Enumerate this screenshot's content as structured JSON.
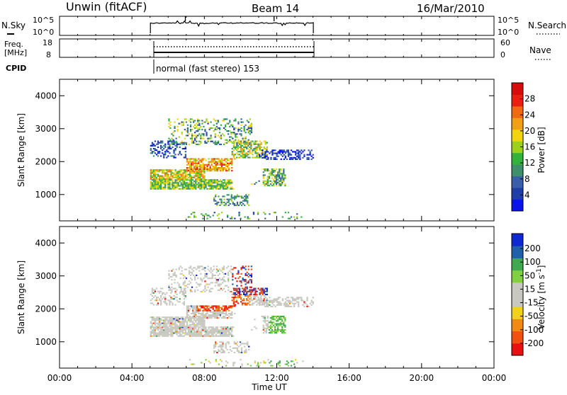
{
  "header": {
    "title": "Unwin (fitACF)",
    "beam": "Beam 14",
    "date": "16/Mar/2010"
  },
  "status_panels": {
    "nsky_label": "N.Sky",
    "nsky_ticks": [
      "10^5",
      "10^0"
    ],
    "nsearch_label": "N.Search",
    "freq_label": "Freq.",
    "freq_unit": "[MHz]",
    "freq_ticks": [
      "18",
      "8"
    ],
    "nave_label": "Nave",
    "nave_ticks": [
      "60",
      "0"
    ],
    "cpid_label": "CPID",
    "cpid_text": "normal (fast stereo) 153"
  },
  "colors": {
    "power_scale": [
      "#0a14e6",
      "#1f3ea8",
      "#3a5fa8",
      "#3f8f6a",
      "#33b23c",
      "#9ed11a",
      "#f2d410",
      "#f0a014",
      "#f06a14",
      "#e82010",
      "#d40c0c"
    ],
    "velocity_scale": [
      "#e81010",
      "#f05010",
      "#f08a14",
      "#f2d020",
      "#c8c8c0",
      "#c8c8c0",
      "#80d040",
      "#3fa850",
      "#2060a8",
      "#1028d0"
    ]
  },
  "chart_data": [
    {
      "type": "heatmap",
      "name": "power",
      "ylabel": "Slant Range [km]",
      "yticks": [
        1000,
        2000,
        3000,
        4000
      ],
      "ylim": [
        200,
        4500
      ],
      "xlim": [
        0,
        24
      ],
      "colorbar_label": "Power [dB]",
      "colorbar_ticks": [
        "4",
        "8",
        "12",
        "16",
        "20",
        "24",
        "28"
      ],
      "clim": [
        0,
        32
      ]
    },
    {
      "type": "heatmap",
      "name": "velocity",
      "ylabel": "Slant Range [km]",
      "yticks": [
        1000,
        2000,
        3000,
        4000
      ],
      "ylim": [
        200,
        4500
      ],
      "xlim": [
        0,
        24
      ],
      "xlabel": "Time UT",
      "xticks": [
        "00:00",
        "04:00",
        "08:00",
        "12:00",
        "16:00",
        "20:00",
        "00:00"
      ],
      "colorbar_label": "Velocity [m s",
      "colorbar_unit_sup": "-1",
      "colorbar_unit_end": "]",
      "colorbar_ticks": [
        "200",
        "100",
        "50",
        "15",
        "-15",
        "-50",
        "-100",
        "-200"
      ]
    }
  ]
}
